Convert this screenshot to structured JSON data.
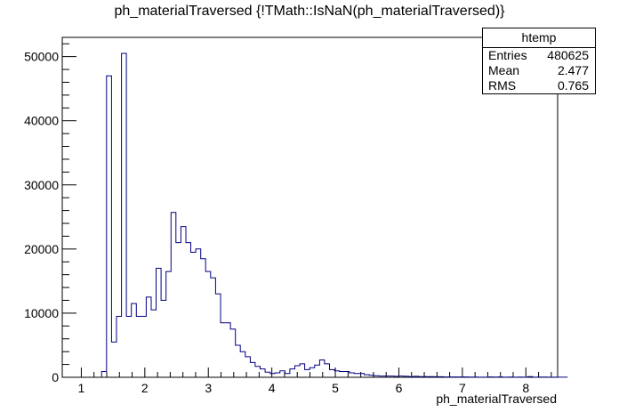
{
  "chart_data": {
    "type": "histogram",
    "title": "ph_materialTraversed {!TMath::IsNaN(ph_materialTraversed)}",
    "xlabel": "ph_materialTraversed",
    "ylabel": "",
    "xlim": [
      0.7,
      8.5
    ],
    "ylim": [
      0,
      53000
    ],
    "line_color": "#000080",
    "bin_width": 0.078,
    "bin_start": 1.32,
    "values": [
      900,
      47000,
      5500,
      9500,
      50500,
      9500,
      11500,
      9500,
      9500,
      12500,
      10500,
      17000,
      12000,
      16500,
      25700,
      21000,
      23500,
      21000,
      19500,
      20000,
      18500,
      16500,
      15500,
      13000,
      8500,
      8500,
      7500,
      5000,
      4000,
      3200,
      2300,
      1700,
      1300,
      800,
      600,
      700,
      1000,
      600,
      1300,
      1800,
      2100,
      1200,
      1500,
      1900,
      2700,
      2100,
      1200,
      1000,
      900,
      900,
      700,
      600,
      600,
      400,
      300,
      250,
      200,
      200,
      200,
      150,
      200,
      150,
      100,
      150,
      100,
      100,
      100,
      80,
      80,
      60,
      60,
      60,
      50,
      50,
      40,
      30,
      20,
      20,
      60,
      30,
      50,
      20,
      40,
      20,
      40,
      20,
      100,
      20,
      40,
      30,
      20,
      10,
      10,
      10
    ],
    "x_ticks": [
      "1",
      "2",
      "3",
      "4",
      "5",
      "6",
      "7",
      "8"
    ],
    "y_ticks": [
      "0",
      "10000",
      "20000",
      "30000",
      "40000",
      "50000"
    ],
    "stats": {
      "name": "htemp",
      "rows": [
        {
          "label": "Entries",
          "value": "480625"
        },
        {
          "label": "Mean",
          "value": "2.477"
        },
        {
          "label": "RMS",
          "value": "0.765"
        }
      ]
    }
  }
}
